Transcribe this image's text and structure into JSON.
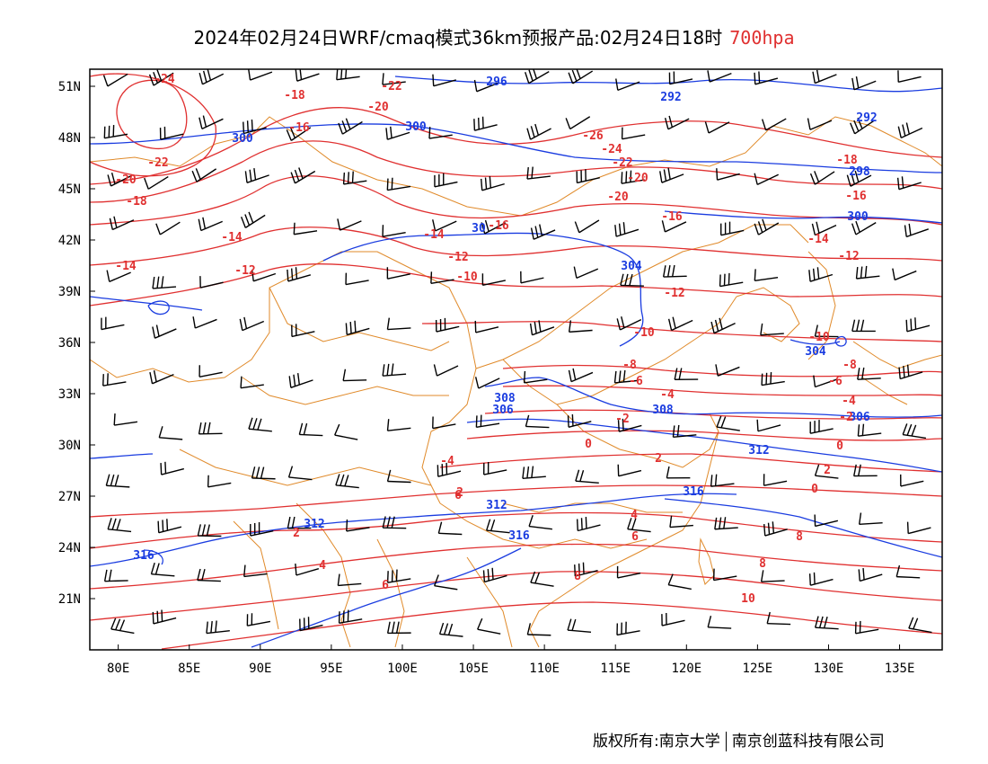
{
  "title": {
    "text": "2024年02月24日WRF/cmaq模式36km预报产品:02月24日18时",
    "level": "700hpa"
  },
  "footer": {
    "left": "版权所有:南京大学",
    "right": "南京创蓝科技有限公司"
  },
  "colors": {
    "height_contour": "#1a3ce0",
    "temperature_contour": "#e03030",
    "boundary": "#e08a2a",
    "wind_barb": "#000000",
    "frame": "#000000"
  },
  "axes": {
    "lon_ticks": [
      "80E",
      "85E",
      "90E",
      "95E",
      "100E",
      "105E",
      "110E",
      "115E",
      "120E",
      "125E",
      "130E",
      "135E"
    ],
    "lat_ticks": [
      "51N",
      "48N",
      "45N",
      "42N",
      "39N",
      "36N",
      "33N",
      "30N",
      "27N",
      "24N",
      "21N"
    ],
    "lon_range": [
      78,
      138
    ],
    "lat_range": [
      18,
      52
    ]
  },
  "height_labels": [
    "296",
    "292",
    "292",
    "300",
    "300",
    "298",
    "300",
    "30",
    "304",
    "304",
    "308",
    "306",
    "308",
    "306",
    "312",
    "312",
    "316",
    "316",
    "312",
    "316"
  ],
  "temperature_labels": [
    "-24",
    "-22",
    "-18",
    "-20",
    "-16",
    "-22",
    "-20",
    "-18",
    "-26",
    "-24",
    "-22",
    "-20",
    "-20",
    "-18",
    "-16",
    "-16",
    "-16",
    "-14",
    "-14",
    "-14",
    "-12",
    "-14",
    "-12",
    "-12",
    "-10",
    "-12",
    "-10",
    "-10",
    "-8",
    "-8",
    "-6",
    "-6",
    "-4",
    "-4",
    "-2",
    "-2",
    "0",
    "0",
    "2",
    "2",
    "-4",
    "2",
    "0",
    "4",
    "4",
    "2",
    "6",
    "6",
    "8",
    "6",
    "8",
    "8",
    "10"
  ]
}
